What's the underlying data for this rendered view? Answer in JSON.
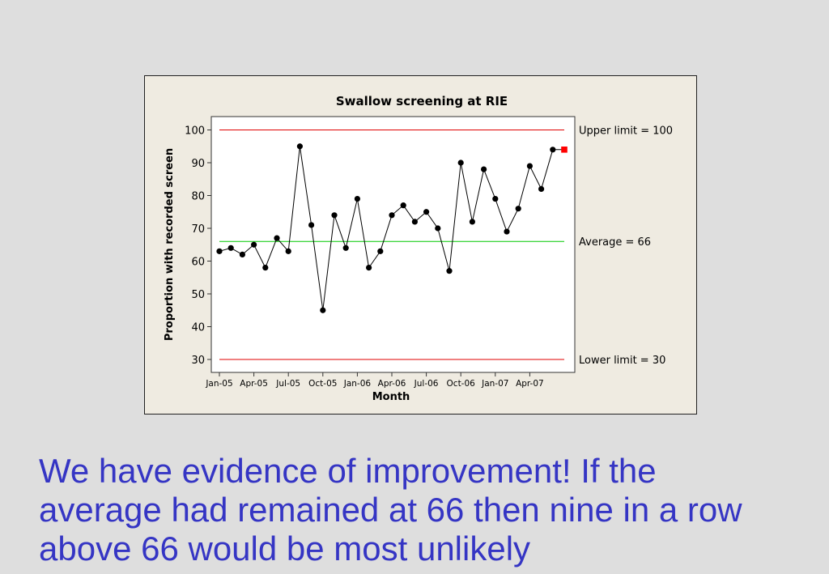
{
  "chart_data": {
    "type": "line",
    "title": "Swallow screening at RIE",
    "xlabel": "Month",
    "ylabel": "Proportion with recorded screen",
    "ylim": [
      27,
      104
    ],
    "yticks": [
      30,
      40,
      50,
      60,
      70,
      80,
      90,
      100
    ],
    "x_tick_labels": [
      "Jan-05",
      "Apr-05",
      "Jul-05",
      "Oct-05",
      "Jan-06",
      "Apr-06",
      "Jul-06",
      "Oct-06",
      "Jan-07",
      "Apr-07"
    ],
    "x": [
      "Jan-05",
      "Feb-05",
      "Mar-05",
      "Apr-05",
      "May-05",
      "Jun-05",
      "Jul-05",
      "Aug-05",
      "Sep-05",
      "Oct-05",
      "Nov-05",
      "Dec-05",
      "Jan-06",
      "Feb-06",
      "Mar-06",
      "Apr-06",
      "May-06",
      "Jun-06",
      "Jul-06",
      "Aug-06",
      "Sep-06",
      "Oct-06",
      "Nov-06",
      "Dec-06",
      "Jan-07",
      "Feb-07",
      "Mar-07",
      "Apr-07",
      "May-07",
      "Jun-07",
      "Jul-07"
    ],
    "series": [
      {
        "values": [
          63,
          64,
          62,
          65,
          58,
          67,
          63,
          95,
          71,
          45,
          74,
          64,
          79,
          58,
          63,
          74,
          77,
          72,
          75,
          70,
          57,
          90,
          72,
          88,
          79,
          69,
          76,
          89,
          82,
          94,
          null
        ],
        "color": "#000000"
      }
    ],
    "highlight_point": {
      "x": "Jul-07",
      "y": 94,
      "color": "#ff0000"
    },
    "reference_lines": [
      {
        "label": "Upper limit = 100",
        "value": 100,
        "color": "#e00000"
      },
      {
        "label": "Average = 66",
        "value": 66,
        "color": "#00c800"
      },
      {
        "label": "Lower limit = 30",
        "value": 30,
        "color": "#e00000"
      }
    ],
    "grid": false,
    "legend": "none"
  },
  "caption": {
    "line1": "We have evidence of improvement!  If the",
    "line2": "average had remained at 66 then nine in a row",
    "line3": "above 66 would be most unlikely"
  }
}
